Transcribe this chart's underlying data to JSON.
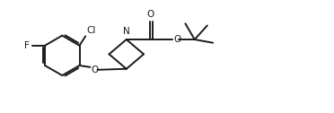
{
  "background_color": "#ffffff",
  "line_color": "#1a1a1a",
  "line_width": 1.4,
  "font_size": 7.5,
  "figsize": [
    3.72,
    1.26
  ],
  "dpi": 100,
  "xlim": [
    0,
    10.0
  ],
  "ylim": [
    0,
    2.7
  ]
}
